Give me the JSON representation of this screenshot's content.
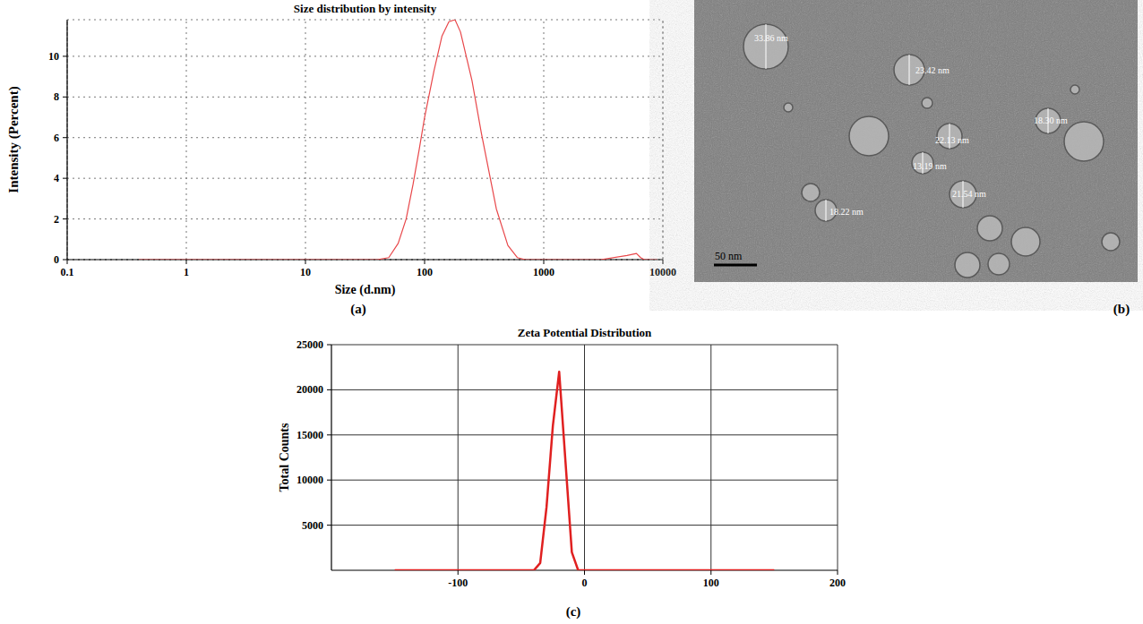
{
  "chart_data": [
    {
      "type": "line",
      "panel": "(a)",
      "title": "Size distribution by intensity",
      "x_label": "Size (d.nm)",
      "y_label": "Intensity (Percent)",
      "log": "x",
      "grid": true,
      "color": "#e8474a",
      "x": [
        0.4,
        1,
        10,
        40,
        50,
        60,
        70,
        80,
        90,
        100,
        120,
        140,
        160,
        180,
        200,
        250,
        300,
        400,
        500,
        600,
        700,
        1000,
        3000,
        5000,
        6000,
        6500,
        7000,
        9000
      ],
      "values": [
        0,
        0,
        0,
        0,
        0.1,
        0.8,
        2.0,
        3.7,
        5.4,
        7.0,
        9.3,
        11.0,
        11.7,
        11.8,
        11.2,
        8.8,
        6.2,
        2.5,
        0.7,
        0.1,
        0,
        0,
        0,
        0.2,
        0.3,
        0.1,
        0,
        0
      ],
      "xlim": [
        0.1,
        10000
      ],
      "xticks": [
        0.1,
        1,
        10,
        100,
        1000,
        10000
      ],
      "ylim": [
        0,
        11.8
      ],
      "yticks": [
        0,
        2,
        4,
        6,
        8,
        10
      ]
    },
    {
      "type": "line",
      "panel": "(c)",
      "title": "Zeta Potential Distribution",
      "y_label": "Total Counts",
      "grid": true,
      "color": "#e02020",
      "x": [
        -150,
        -40,
        -35,
        -30,
        -25,
        -20,
        -15,
        -10,
        -5,
        0,
        150
      ],
      "values": [
        0,
        0,
        800,
        7000,
        16000,
        22000,
        12000,
        2000,
        0,
        0,
        0
      ],
      "xlim": [
        -200,
        200
      ],
      "xticks": [
        -100,
        0,
        100,
        200
      ],
      "ylim": [
        0,
        25000
      ],
      "yticks": [
        5000,
        10000,
        15000,
        20000,
        25000
      ]
    }
  ],
  "image": {
    "panel": "(b)",
    "scale_bar": "50 nm",
    "measurements": [
      "33.86 nm",
      "23.42 nm",
      "18.30 nm",
      "22.13 nm",
      "13.19 nm",
      "21.54 nm",
      "18.22 nm"
    ]
  }
}
